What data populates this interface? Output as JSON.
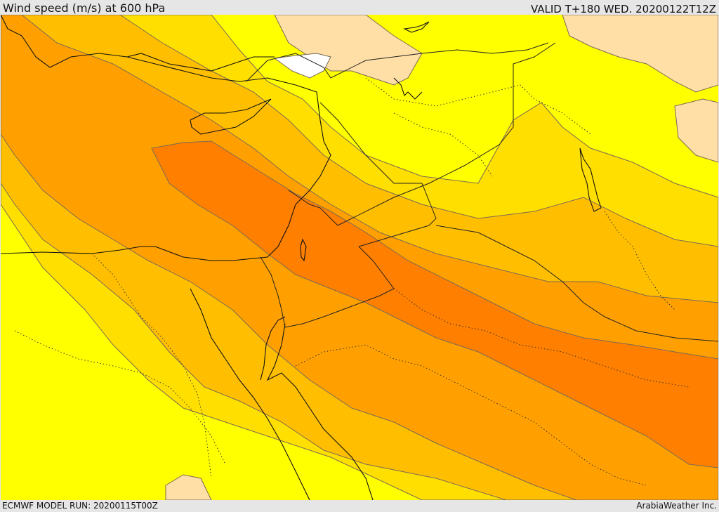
{
  "header": {
    "title": "Wind speed (m/s) at 600 hPa",
    "valid": "VALID T+180 WED. 20200122T12Z"
  },
  "footer": {
    "model_run": "ECMWF MODEL RUN: 20200115T00Z",
    "credit": "ArabiaWeather Inc."
  },
  "map": {
    "variable": "wind speed",
    "level_hpa": 600,
    "units": "m/s",
    "colors": {
      "band_1": "#ffffff",
      "band_2": "#ffdfa5",
      "band_3": "#ffff00",
      "band_4": "#ffdf00",
      "band_5": "#ffbf00",
      "band_6": "#ffa000",
      "band_7": "#ff7f00"
    }
  }
}
